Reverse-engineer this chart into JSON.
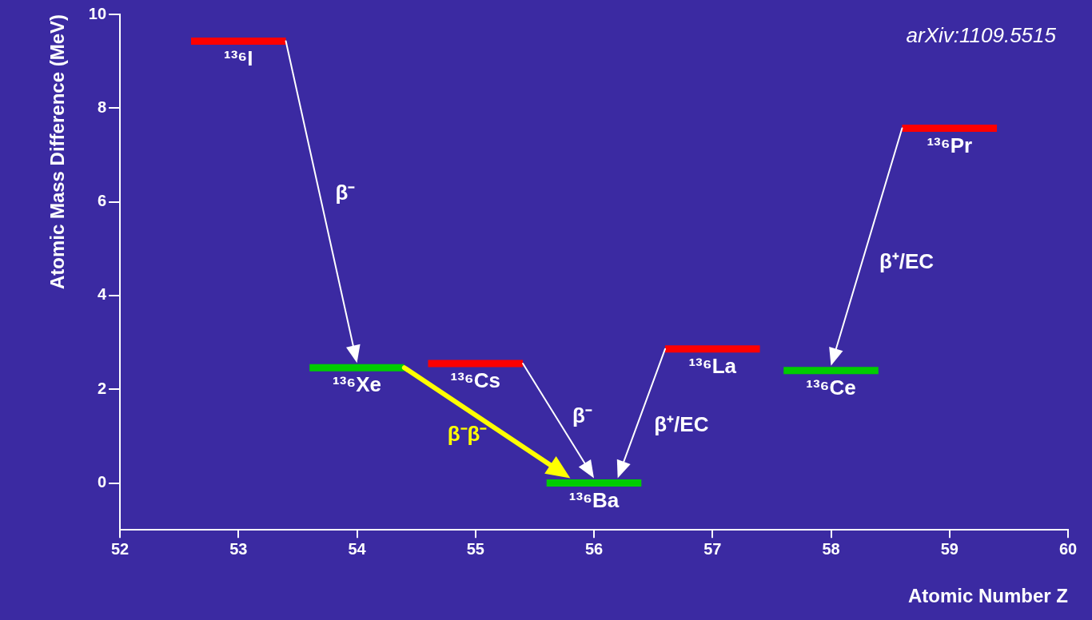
{
  "chart_data": {
    "type": "line",
    "xlabel": "Atomic Number Z",
    "ylabel": "Atomic Mass Difference (MeV)",
    "xlim": [
      52,
      60
    ],
    "xticks": [
      52,
      53,
      54,
      55,
      56,
      57,
      58,
      59,
      60
    ],
    "ylim": [
      -1,
      10
    ],
    "yticks": [
      0,
      2,
      4,
      6,
      8,
      10
    ],
    "grid": false,
    "legend": false,
    "marker": "none",
    "line_style": "solid",
    "series": [
      {
        "name": "¹³⁶I",
        "color": "#ff0000",
        "x": [
          52.6,
          53.4
        ],
        "values": [
          9.43,
          9.43
        ]
      },
      {
        "name": "¹³⁶Xe",
        "color": "#00cc00",
        "x": [
          53.6,
          54.4
        ],
        "values": [
          2.46,
          2.46
        ]
      },
      {
        "name": "¹³⁶Cs",
        "color": "#ff0000",
        "x": [
          54.6,
          55.4
        ],
        "values": [
          2.55,
          2.55
        ]
      },
      {
        "name": "¹³⁶Ba",
        "color": "#00cc00",
        "x": [
          55.6,
          56.4
        ],
        "values": [
          0,
          0
        ]
      },
      {
        "name": "¹³⁶La",
        "color": "#ff0000",
        "x": [
          56.6,
          57.4
        ],
        "values": [
          2.86,
          2.86
        ]
      },
      {
        "name": "¹³⁶Ce",
        "color": "#00cc00",
        "x": [
          57.6,
          58.4
        ],
        "values": [
          2.4,
          2.4
        ]
      },
      {
        "name": "¹³⁶Pr",
        "color": "#ff0000",
        "x": [
          58.6,
          59.4
        ],
        "values": [
          7.57,
          7.57
        ]
      }
    ],
    "annotations": [
      "β⁻",
      "β⁻β⁻",
      "β⁻",
      "β⁺/EC",
      "β⁺/EC",
      "arXiv:1109.5515"
    ]
  }
}
